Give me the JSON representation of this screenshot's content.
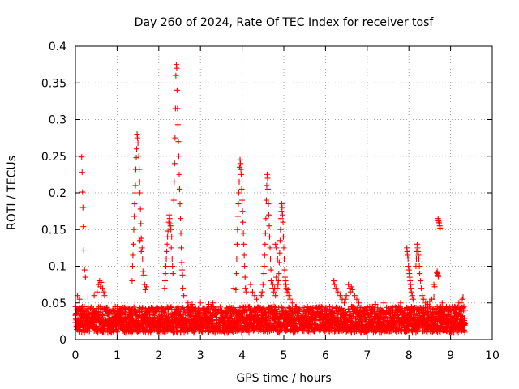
{
  "chart_data": {
    "type": "scatter",
    "title": "Day 260 of 2024, Rate Of TEC Index for receiver tosf",
    "xlabel": "GPS time / hours",
    "ylabel": "ROTI / TECUs",
    "xlim": [
      0,
      10
    ],
    "ylim": [
      0,
      0.4
    ],
    "x_ticks": [
      0,
      1,
      2,
      3,
      4,
      5,
      6,
      7,
      8,
      9,
      10
    ],
    "x_tick_labels": [
      "0",
      "1",
      "2",
      "3",
      "4",
      "5",
      "6",
      "7",
      "8",
      "9",
      "10"
    ],
    "y_ticks": [
      0,
      0.05,
      0.1,
      0.15,
      0.2,
      0.25,
      0.3,
      0.35,
      0.4
    ],
    "y_tick_labels": [
      "0",
      "0.05",
      "0.1",
      "0.15",
      "0.2",
      "0.25",
      "0.3",
      "0.35",
      "0.4"
    ],
    "grid": true,
    "marker": "+",
    "color": "#ff0000",
    "x_data_range": [
      0,
      9.35
    ],
    "baseline": {
      "x_step": 0.004,
      "y_range": [
        0.01,
        0.045
      ],
      "note": "dense band of points along the bottom of the plot"
    },
    "series": [
      {
        "name": "ROTI",
        "points": [
          [
            0.15,
            0.249
          ],
          [
            0.16,
            0.228
          ],
          [
            0.17,
            0.201
          ],
          [
            0.18,
            0.18
          ],
          [
            0.19,
            0.154
          ],
          [
            0.2,
            0.122
          ],
          [
            0.22,
            0.095
          ],
          [
            0.24,
            0.085
          ],
          [
            0.05,
            0.06
          ],
          [
            0.1,
            0.055
          ],
          [
            0.3,
            0.058
          ],
          [
            0.45,
            0.06
          ],
          [
            0.55,
            0.075
          ],
          [
            0.58,
            0.08
          ],
          [
            0.6,
            0.072
          ],
          [
            0.62,
            0.078
          ],
          [
            0.65,
            0.07
          ],
          [
            0.68,
            0.065
          ],
          [
            0.7,
            0.06
          ],
          [
            0.52,
            0.065
          ],
          [
            1.48,
            0.28
          ],
          [
            1.49,
            0.275
          ],
          [
            1.5,
            0.268
          ],
          [
            1.47,
            0.26
          ],
          [
            1.46,
            0.248
          ],
          [
            1.45,
            0.232
          ],
          [
            1.44,
            0.21
          ],
          [
            1.43,
            0.2
          ],
          [
            1.42,
            0.185
          ],
          [
            1.41,
            0.168
          ],
          [
            1.4,
            0.15
          ],
          [
            1.39,
            0.13
          ],
          [
            1.38,
            0.115
          ],
          [
            1.37,
            0.1
          ],
          [
            1.36,
            0.08
          ],
          [
            1.52,
            0.25
          ],
          [
            1.53,
            0.232
          ],
          [
            1.54,
            0.215
          ],
          [
            1.55,
            0.2
          ],
          [
            1.56,
            0.178
          ],
          [
            1.57,
            0.158
          ],
          [
            1.58,
            0.138
          ],
          [
            1.6,
            0.125
          ],
          [
            1.61,
            0.11
          ],
          [
            1.62,
            0.093
          ],
          [
            1.64,
            0.088
          ],
          [
            1.66,
            0.075
          ],
          [
            1.68,
            0.068
          ],
          [
            1.7,
            0.072
          ],
          [
            1.55,
            0.135
          ],
          [
            1.58,
            0.12
          ],
          [
            2.25,
            0.17
          ],
          [
            2.26,
            0.165
          ],
          [
            2.24,
            0.16
          ],
          [
            2.27,
            0.158
          ],
          [
            2.28,
            0.155
          ],
          [
            2.22,
            0.148
          ],
          [
            2.21,
            0.14
          ],
          [
            2.2,
            0.13
          ],
          [
            2.19,
            0.12
          ],
          [
            2.18,
            0.11
          ],
          [
            2.17,
            0.1
          ],
          [
            2.16,
            0.09
          ],
          [
            2.15,
            0.08
          ],
          [
            2.14,
            0.07
          ],
          [
            2.3,
            0.125
          ],
          [
            2.32,
            0.11
          ],
          [
            2.33,
            0.1
          ],
          [
            2.34,
            0.09
          ],
          [
            2.31,
            0.14
          ],
          [
            2.29,
            0.15
          ],
          [
            2.42,
            0.375
          ],
          [
            2.43,
            0.37
          ],
          [
            2.41,
            0.36
          ],
          [
            2.44,
            0.34
          ],
          [
            2.4,
            0.315
          ],
          [
            2.45,
            0.315
          ],
          [
            2.46,
            0.293
          ],
          [
            2.39,
            0.275
          ],
          [
            2.47,
            0.27
          ],
          [
            2.48,
            0.25
          ],
          [
            2.38,
            0.24
          ],
          [
            2.49,
            0.225
          ],
          [
            2.5,
            0.205
          ],
          [
            2.37,
            0.215
          ],
          [
            2.51,
            0.185
          ],
          [
            2.52,
            0.165
          ],
          [
            2.53,
            0.145
          ],
          [
            2.54,
            0.125
          ],
          [
            2.55,
            0.105
          ],
          [
            2.56,
            0.095
          ],
          [
            2.57,
            0.088
          ],
          [
            2.36,
            0.19
          ],
          [
            2.58,
            0.07
          ],
          [
            2.6,
            0.06
          ],
          [
            2.7,
            0.05
          ],
          [
            2.8,
            0.048
          ],
          [
            3.0,
            0.05
          ],
          [
            3.2,
            0.048
          ],
          [
            3.3,
            0.05
          ],
          [
            3.95,
            0.245
          ],
          [
            3.96,
            0.24
          ],
          [
            3.97,
            0.232
          ],
          [
            3.94,
            0.235
          ],
          [
            3.98,
            0.225
          ],
          [
            3.93,
            0.215
          ],
          [
            3.99,
            0.205
          ],
          [
            3.92,
            0.2
          ],
          [
            4.0,
            0.19
          ],
          [
            3.91,
            0.185
          ],
          [
            4.01,
            0.175
          ],
          [
            3.9,
            0.168
          ],
          [
            4.02,
            0.16
          ],
          [
            4.03,
            0.145
          ],
          [
            3.89,
            0.15
          ],
          [
            4.04,
            0.13
          ],
          [
            4.05,
            0.115
          ],
          [
            3.88,
            0.13
          ],
          [
            4.06,
            0.1
          ],
          [
            4.07,
            0.085
          ],
          [
            3.87,
            0.11
          ],
          [
            4.08,
            0.07
          ],
          [
            4.1,
            0.065
          ],
          [
            3.86,
            0.09
          ],
          [
            3.85,
            0.068
          ],
          [
            3.8,
            0.07
          ],
          [
            4.2,
            0.075
          ],
          [
            4.25,
            0.065
          ],
          [
            4.3,
            0.06
          ],
          [
            4.35,
            0.055
          ],
          [
            4.6,
            0.225
          ],
          [
            4.61,
            0.22
          ],
          [
            4.59,
            0.21
          ],
          [
            4.62,
            0.205
          ],
          [
            4.58,
            0.19
          ],
          [
            4.63,
            0.185
          ],
          [
            4.64,
            0.17
          ],
          [
            4.57,
            0.165
          ],
          [
            4.65,
            0.155
          ],
          [
            4.56,
            0.145
          ],
          [
            4.66,
            0.14
          ],
          [
            4.55,
            0.13
          ],
          [
            4.67,
            0.125
          ],
          [
            4.54,
            0.115
          ],
          [
            4.68,
            0.11
          ],
          [
            4.53,
            0.1
          ],
          [
            4.69,
            0.095
          ],
          [
            4.52,
            0.09
          ],
          [
            4.7,
            0.08
          ],
          [
            4.5,
            0.075
          ],
          [
            4.72,
            0.07
          ],
          [
            4.48,
            0.065
          ],
          [
            4.74,
            0.075
          ],
          [
            4.46,
            0.06
          ],
          [
            4.76,
            0.065
          ],
          [
            4.78,
            0.07
          ],
          [
            4.8,
            0.06
          ],
          [
            4.95,
            0.185
          ],
          [
            4.96,
            0.18
          ],
          [
            4.94,
            0.175
          ],
          [
            4.97,
            0.17
          ],
          [
            4.93,
            0.165
          ],
          [
            4.98,
            0.16
          ],
          [
            4.92,
            0.15
          ],
          [
            4.99,
            0.14
          ],
          [
            4.91,
            0.135
          ],
          [
            5.0,
            0.125
          ],
          [
            4.9,
            0.118
          ],
          [
            5.01,
            0.11
          ],
          [
            4.89,
            0.105
          ],
          [
            5.02,
            0.095
          ],
          [
            4.88,
            0.09
          ],
          [
            5.03,
            0.085
          ],
          [
            4.87,
            0.08
          ],
          [
            5.04,
            0.08
          ],
          [
            4.86,
            0.075
          ],
          [
            5.05,
            0.075
          ],
          [
            4.84,
            0.07
          ],
          [
            5.06,
            0.07
          ],
          [
            4.82,
            0.085
          ],
          [
            5.08,
            0.065
          ],
          [
            5.1,
            0.068
          ],
          [
            5.12,
            0.06
          ],
          [
            5.15,
            0.055
          ],
          [
            5.2,
            0.05
          ],
          [
            4.8,
            0.13
          ],
          [
            4.82,
            0.125
          ],
          [
            4.85,
            0.11
          ],
          [
            6.2,
            0.08
          ],
          [
            6.22,
            0.075
          ],
          [
            6.25,
            0.07
          ],
          [
            6.3,
            0.065
          ],
          [
            6.35,
            0.06
          ],
          [
            6.4,
            0.055
          ],
          [
            6.45,
            0.05
          ],
          [
            6.55,
            0.075
          ],
          [
            6.58,
            0.07
          ],
          [
            6.6,
            0.065
          ],
          [
            6.62,
            0.072
          ],
          [
            6.64,
            0.068
          ],
          [
            6.5,
            0.06
          ],
          [
            6.48,
            0.055
          ],
          [
            6.7,
            0.06
          ],
          [
            6.75,
            0.055
          ],
          [
            6.8,
            0.05
          ],
          [
            7.0,
            0.045
          ],
          [
            7.2,
            0.048
          ],
          [
            7.4,
            0.05
          ],
          [
            7.6,
            0.045
          ],
          [
            7.8,
            0.05
          ],
          [
            7.95,
            0.125
          ],
          [
            7.96,
            0.12
          ],
          [
            7.97,
            0.115
          ],
          [
            7.98,
            0.11
          ],
          [
            7.99,
            0.1
          ],
          [
            8.0,
            0.095
          ],
          [
            8.01,
            0.09
          ],
          [
            8.02,
            0.085
          ],
          [
            8.03,
            0.08
          ],
          [
            8.04,
            0.075
          ],
          [
            8.05,
            0.07
          ],
          [
            8.06,
            0.065
          ],
          [
            8.08,
            0.06
          ],
          [
            8.1,
            0.055
          ],
          [
            8.2,
            0.13
          ],
          [
            8.21,
            0.125
          ],
          [
            8.22,
            0.12
          ],
          [
            8.23,
            0.115
          ],
          [
            8.24,
            0.11
          ],
          [
            8.19,
            0.12
          ],
          [
            8.18,
            0.11
          ],
          [
            8.25,
            0.1
          ],
          [
            8.26,
            0.09
          ],
          [
            8.17,
            0.1
          ],
          [
            8.28,
            0.08
          ],
          [
            8.3,
            0.07
          ],
          [
            8.32,
            0.06
          ],
          [
            8.35,
            0.055
          ],
          [
            8.4,
            0.05
          ],
          [
            8.45,
            0.048
          ],
          [
            8.5,
            0.052
          ],
          [
            8.55,
            0.055
          ],
          [
            8.6,
            0.058
          ],
          [
            8.6,
            0.075
          ],
          [
            8.62,
            0.072
          ],
          [
            8.7,
            0.165
          ],
          [
            8.72,
            0.16
          ],
          [
            8.74,
            0.155
          ],
          [
            8.73,
            0.158
          ],
          [
            8.71,
            0.162
          ],
          [
            8.75,
            0.152
          ],
          [
            8.68,
            0.093
          ],
          [
            8.69,
            0.09
          ],
          [
            8.7,
            0.088
          ],
          [
            8.71,
            0.086
          ],
          [
            8.67,
            0.091
          ],
          [
            8.8,
            0.05
          ],
          [
            8.9,
            0.045
          ],
          [
            9.0,
            0.04
          ],
          [
            9.1,
            0.045
          ],
          [
            9.2,
            0.05
          ],
          [
            9.25,
            0.05
          ],
          [
            9.28,
            0.055
          ],
          [
            9.3,
            0.058
          ],
          [
            9.32,
            0.045
          ],
          [
            9.35,
            0.04
          ]
        ]
      }
    ]
  }
}
